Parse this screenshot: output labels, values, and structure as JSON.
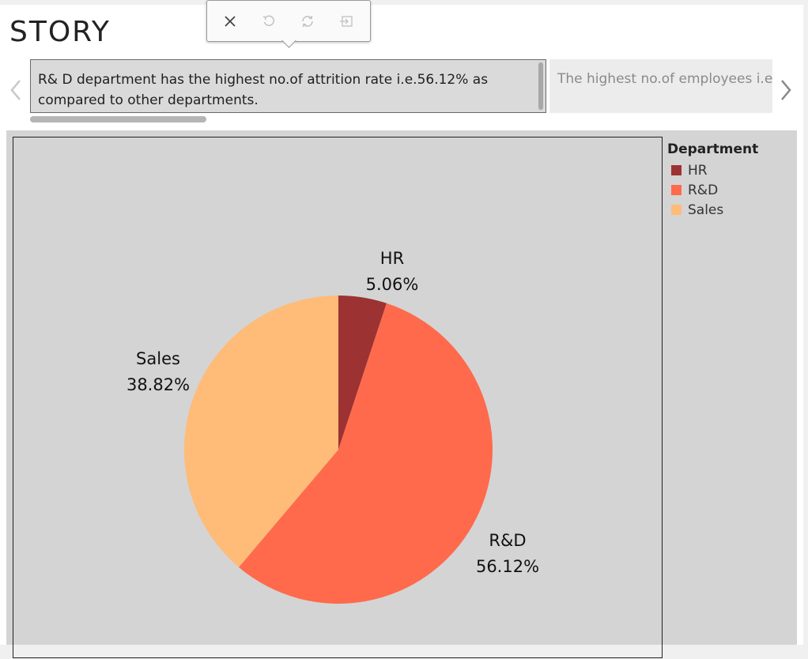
{
  "story": {
    "title": "STORY"
  },
  "toolbar": {
    "buttons": [
      {
        "icon": "close-icon",
        "enabled": true
      },
      {
        "icon": "undo-icon",
        "enabled": false
      },
      {
        "icon": "refresh-icon",
        "enabled": false
      },
      {
        "icon": "exit-icon",
        "enabled": false
      }
    ]
  },
  "captions": {
    "active": "R& D department has the highest no.of attrition rate i.e.56.12% as compared to other departments.",
    "next": "The highest no.of employees i.e."
  },
  "legend": {
    "title": "Department",
    "items": [
      {
        "label": "HR",
        "color": "#9c3232"
      },
      {
        "label": "R&D",
        "color": "#ff6a4c"
      },
      {
        "label": "Sales",
        "color": "#ffbb78"
      }
    ]
  },
  "chart_data": {
    "type": "pie",
    "title": "",
    "categories": [
      "HR",
      "R&D",
      "Sales"
    ],
    "values": [
      5.06,
      56.12,
      38.82
    ],
    "unit": "%",
    "colors": [
      "#9c3232",
      "#ff6a4c",
      "#ffbb78"
    ],
    "labels": [
      {
        "name": "HR",
        "value": "5.06%"
      },
      {
        "name": "R&D",
        "value": "56.12%"
      },
      {
        "name": "Sales",
        "value": "38.82%"
      }
    ],
    "legend_position": "top-right"
  }
}
